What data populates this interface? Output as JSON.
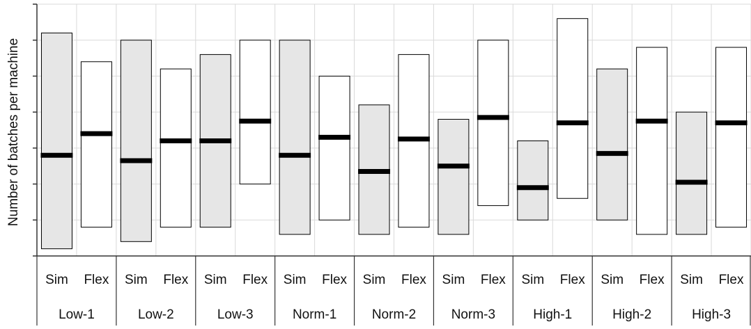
{
  "chart_data": {
    "type": "box",
    "ylabel": "Number of batches per machine",
    "ylim": [
      0,
      7
    ],
    "y_gridlines": [
      1,
      2,
      3,
      4,
      5,
      6,
      7
    ],
    "y_tick_labels_shown": false,
    "grid": true,
    "subgroup_labels": [
      "Sim",
      "Flex"
    ],
    "groups": [
      {
        "name": "Low-1",
        "sim": {
          "min": 0.2,
          "max": 6.2,
          "median": 2.8
        },
        "flex": {
          "min": 0.8,
          "max": 5.4,
          "median": 3.4
        }
      },
      {
        "name": "Low-2",
        "sim": {
          "min": 0.4,
          "max": 6.0,
          "median": 2.65
        },
        "flex": {
          "min": 0.8,
          "max": 5.2,
          "median": 3.2
        }
      },
      {
        "name": "Low-3",
        "sim": {
          "min": 0.8,
          "max": 5.6,
          "median": 3.2
        },
        "flex": {
          "min": 2.0,
          "max": 6.0,
          "median": 3.75
        }
      },
      {
        "name": "Norm-1",
        "sim": {
          "min": 0.6,
          "max": 6.0,
          "median": 2.8
        },
        "flex": {
          "min": 1.0,
          "max": 5.0,
          "median": 3.3
        }
      },
      {
        "name": "Norm-2",
        "sim": {
          "min": 0.6,
          "max": 4.2,
          "median": 2.35
        },
        "flex": {
          "min": 0.8,
          "max": 5.6,
          "median": 3.25
        }
      },
      {
        "name": "Norm-3",
        "sim": {
          "min": 0.6,
          "max": 3.8,
          "median": 2.5
        },
        "flex": {
          "min": 1.4,
          "max": 6.0,
          "median": 3.85
        }
      },
      {
        "name": "High-1",
        "sim": {
          "min": 1.0,
          "max": 3.2,
          "median": 1.9
        },
        "flex": {
          "min": 1.6,
          "max": 6.6,
          "median": 3.7
        }
      },
      {
        "name": "High-2",
        "sim": {
          "min": 1.0,
          "max": 5.2,
          "median": 2.85
        },
        "flex": {
          "min": 0.6,
          "max": 5.8,
          "median": 3.75
        }
      },
      {
        "name": "High-3",
        "sim": {
          "min": 0.6,
          "max": 4.0,
          "median": 2.05
        },
        "flex": {
          "min": 0.8,
          "max": 5.8,
          "median": 3.7
        }
      }
    ],
    "colors": {
      "sim_fill": "#e6e6e6",
      "flex_fill": "#ffffff",
      "box_stroke": "#000000",
      "median": "#000000",
      "grid": "#d9d9d9",
      "axis": "#333333"
    }
  }
}
